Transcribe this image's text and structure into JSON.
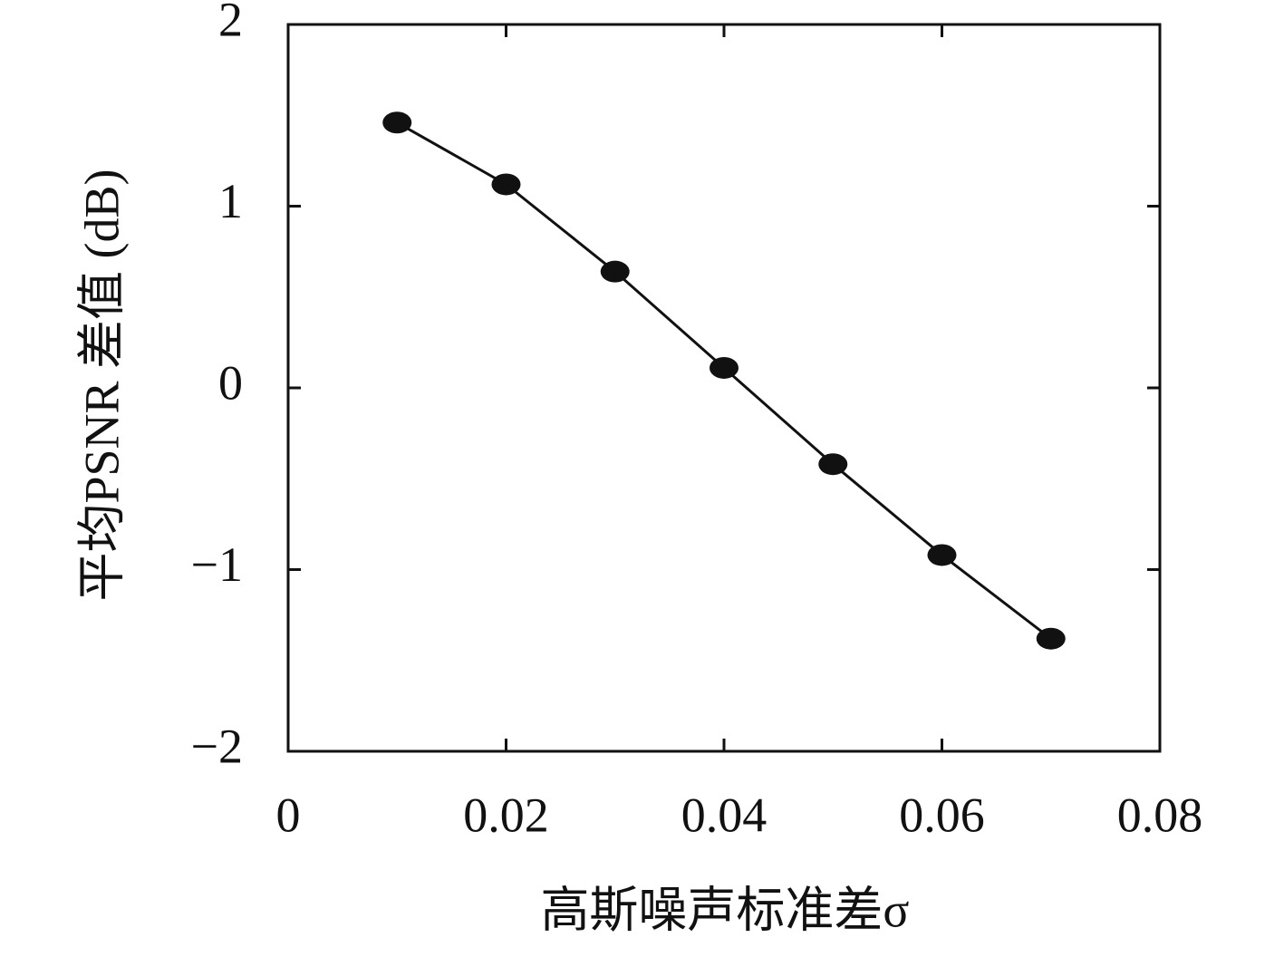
{
  "chart_data": {
    "type": "line",
    "x_label": "高斯噪声标准差σ",
    "y_label": "平均PSNR 差值 (dB)",
    "x": [
      0.01,
      0.02,
      0.03,
      0.04,
      0.05,
      0.06,
      0.07
    ],
    "values": [
      1.46,
      1.12,
      0.64,
      0.11,
      -0.42,
      -0.92,
      -1.38
    ],
    "color": "#111111",
    "xlim": [
      0,
      0.08
    ],
    "xticks": [
      0,
      0.02,
      0.04,
      0.06,
      0.08
    ],
    "ylim": [
      -2,
      2
    ],
    "yticks": [
      {
        "value": -2,
        "label": "−2"
      },
      {
        "value": -1,
        "label": "−1"
      },
      0,
      1,
      2
    ],
    "grid": false
  }
}
